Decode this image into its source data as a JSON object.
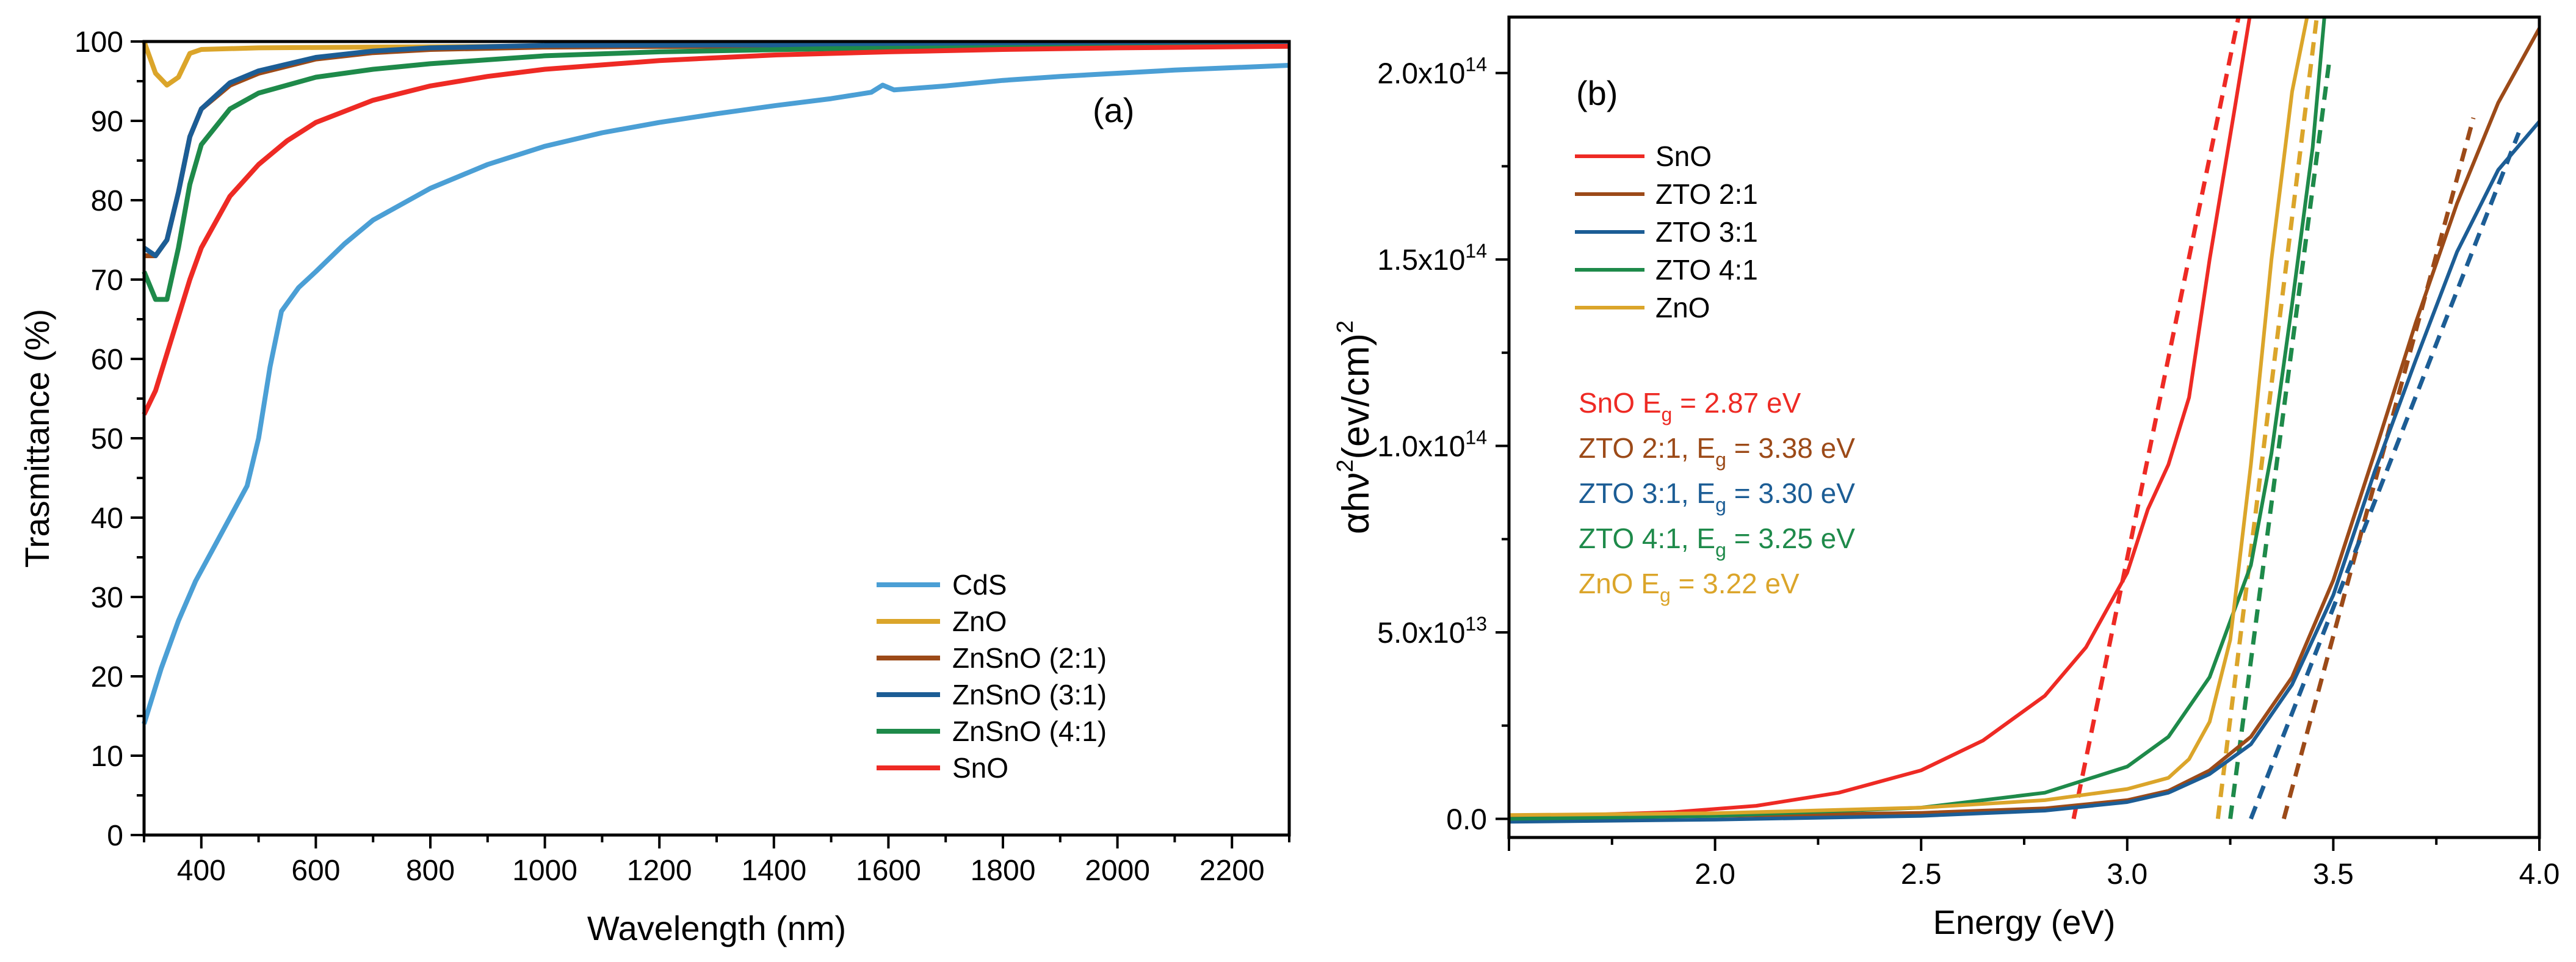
{
  "chart_data": [
    {
      "type": "line",
      "panel_label": "(a)",
      "xlabel": "Wavelength (nm)",
      "ylabel": "Trasmittance (%)",
      "xlim": [
        300,
        2300
      ],
      "ylim": [
        0,
        100
      ],
      "xticks": [
        "400",
        "600",
        "800",
        "1000",
        "1200",
        "1400",
        "1600",
        "1800",
        "2000",
        "2200"
      ],
      "yticks": [
        "0",
        "10",
        "20",
        "30",
        "40",
        "50",
        "60",
        "70",
        "80",
        "90",
        "100"
      ],
      "legend_position": "bottom-right",
      "series": [
        {
          "name": "CdS",
          "color": "#4b9fd5",
          "points": [
            [
              300,
              14
            ],
            [
              330,
              21
            ],
            [
              360,
              27
            ],
            [
              390,
              32
            ],
            [
              420,
              36
            ],
            [
              450,
              40
            ],
            [
              480,
              44
            ],
            [
              500,
              50
            ],
            [
              520,
              59
            ],
            [
              540,
              66
            ],
            [
              570,
              69
            ],
            [
              600,
              71
            ],
            [
              650,
              74.5
            ],
            [
              700,
              77.5
            ],
            [
              800,
              81.5
            ],
            [
              900,
              84.5
            ],
            [
              1000,
              86.8
            ],
            [
              1100,
              88.5
            ],
            [
              1200,
              89.8
            ],
            [
              1300,
              90.9
            ],
            [
              1400,
              91.9
            ],
            [
              1500,
              92.8
            ],
            [
              1570,
              93.6
            ],
            [
              1590,
              94.5
            ],
            [
              1610,
              93.9
            ],
            [
              1700,
              94.4
            ],
            [
              1800,
              95.1
            ],
            [
              1900,
              95.6
            ],
            [
              2000,
              96
            ],
            [
              2100,
              96.4
            ],
            [
              2200,
              96.7
            ],
            [
              2300,
              97
            ]
          ]
        },
        {
          "name": "ZnO",
          "color": "#dba52a",
          "points": [
            [
              300,
              100
            ],
            [
              320,
              96
            ],
            [
              340,
              94.5
            ],
            [
              360,
              95.5
            ],
            [
              380,
              98.5
            ],
            [
              400,
              99
            ],
            [
              500,
              99.2
            ],
            [
              700,
              99.3
            ],
            [
              1000,
              99.4
            ],
            [
              1500,
              99.5
            ],
            [
              2300,
              99.6
            ]
          ]
        },
        {
          "name": "ZnSnO (2:1)",
          "color": "#9c4a18",
          "points": [
            [
              300,
              73
            ],
            [
              320,
              73
            ],
            [
              340,
              75
            ],
            [
              360,
              81
            ],
            [
              380,
              88
            ],
            [
              400,
              91.5
            ],
            [
              450,
              94.5
            ],
            [
              500,
              96
            ],
            [
              600,
              97.8
            ],
            [
              700,
              98.6
            ],
            [
              800,
              99
            ],
            [
              1000,
              99.3
            ],
            [
              1500,
              99.5
            ],
            [
              2300,
              99.6
            ]
          ]
        },
        {
          "name": "ZnSnO (3:1)",
          "color": "#1c5d95",
          "points": [
            [
              300,
              74
            ],
            [
              320,
              73
            ],
            [
              340,
              75
            ],
            [
              360,
              81
            ],
            [
              380,
              88
            ],
            [
              400,
              91.5
            ],
            [
              450,
              94.8
            ],
            [
              500,
              96.3
            ],
            [
              600,
              98
            ],
            [
              700,
              98.8
            ],
            [
              800,
              99.2
            ],
            [
              1000,
              99.5
            ],
            [
              1500,
              99.6
            ],
            [
              2300,
              99.7
            ]
          ]
        },
        {
          "name": "ZnSnO (4:1)",
          "color": "#1e8a4a",
          "points": [
            [
              300,
              71
            ],
            [
              320,
              67.5
            ],
            [
              340,
              67.5
            ],
            [
              360,
              74
            ],
            [
              380,
              82
            ],
            [
              400,
              87
            ],
            [
              450,
              91.5
            ],
            [
              500,
              93.5
            ],
            [
              600,
              95.5
            ],
            [
              700,
              96.5
            ],
            [
              800,
              97.2
            ],
            [
              1000,
              98.2
            ],
            [
              1200,
              98.7
            ],
            [
              1500,
              99.1
            ],
            [
              2000,
              99.3
            ],
            [
              2300,
              99.4
            ]
          ]
        },
        {
          "name": "SnO",
          "color": "#ee2a24",
          "points": [
            [
              300,
              53
            ],
            [
              320,
              56
            ],
            [
              350,
              63
            ],
            [
              380,
              70
            ],
            [
              400,
              74
            ],
            [
              450,
              80.5
            ],
            [
              500,
              84.5
            ],
            [
              550,
              87.5
            ],
            [
              600,
              89.8
            ],
            [
              700,
              92.6
            ],
            [
              800,
              94.4
            ],
            [
              900,
              95.6
            ],
            [
              1000,
              96.5
            ],
            [
              1200,
              97.6
            ],
            [
              1400,
              98.3
            ],
            [
              1600,
              98.7
            ],
            [
              1800,
              99
            ],
            [
              2000,
              99.2
            ],
            [
              2300,
              99.4
            ]
          ]
        }
      ]
    },
    {
      "type": "line",
      "panel_label": "(b)",
      "xlabel": "Energy (eV)",
      "ylabel_main": "αhν",
      "ylabel_sup1": "2",
      "ylabel_mid": "(ev/cm)",
      "ylabel_sup2": "2",
      "xlim": [
        1.5,
        4.0
      ],
      "ylim": [
        -0.05,
        2.15
      ],
      "y_unit_note": "values in units of 10^14",
      "xticks": [
        "2.0",
        "2.5",
        "3.0",
        "3.5",
        "4.0"
      ],
      "yticks": [
        {
          "value": 0,
          "base": "0.0",
          "exp": ""
        },
        {
          "value": 0.5,
          "base": "5.0x10",
          "exp": "13"
        },
        {
          "value": 1.0,
          "base": "1.0x10",
          "exp": "14"
        },
        {
          "value": 1.5,
          "base": "1.5x10",
          "exp": "14"
        },
        {
          "value": 2.0,
          "base": "2.0x10",
          "exp": "14"
        }
      ],
      "legend_position": "top-left",
      "series": [
        {
          "name": "SnO",
          "color": "#ee2a24",
          "points": [
            [
              1.5,
              0.008
            ],
            [
              1.7,
              0.011
            ],
            [
              1.9,
              0.018
            ],
            [
              2.1,
              0.035
            ],
            [
              2.3,
              0.07
            ],
            [
              2.5,
              0.13
            ],
            [
              2.65,
              0.21
            ],
            [
              2.8,
              0.33
            ],
            [
              2.9,
              0.46
            ],
            [
              3.0,
              0.66
            ],
            [
              3.05,
              0.83
            ],
            [
              3.1,
              0.95
            ],
            [
              3.15,
              1.13
            ],
            [
              3.2,
              1.5
            ],
            [
              3.26,
              1.9
            ],
            [
              3.3,
              2.17
            ]
          ]
        },
        {
          "name": "ZTO 2:1",
          "color": "#9c4a18",
          "points": [
            [
              1.5,
              0.003
            ],
            [
              2.0,
              0.008
            ],
            [
              2.5,
              0.016
            ],
            [
              2.8,
              0.028
            ],
            [
              3.0,
              0.05
            ],
            [
              3.1,
              0.075
            ],
            [
              3.2,
              0.13
            ],
            [
              3.3,
              0.22
            ],
            [
              3.4,
              0.38
            ],
            [
              3.5,
              0.64
            ],
            [
              3.6,
              0.98
            ],
            [
              3.7,
              1.33
            ],
            [
              3.8,
              1.65
            ],
            [
              3.9,
              1.92
            ],
            [
              4.0,
              2.12
            ]
          ]
        },
        {
          "name": "ZTO 3:1",
          "color": "#1c5d95",
          "points": [
            [
              1.5,
              -0.008
            ],
            [
              2.0,
              -0.002
            ],
            [
              2.5,
              0.008
            ],
            [
              2.8,
              0.022
            ],
            [
              3.0,
              0.045
            ],
            [
              3.1,
              0.07
            ],
            [
              3.2,
              0.12
            ],
            [
              3.3,
              0.2
            ],
            [
              3.4,
              0.36
            ],
            [
              3.5,
              0.6
            ],
            [
              3.6,
              0.93
            ],
            [
              3.7,
              1.23
            ],
            [
              3.8,
              1.52
            ],
            [
              3.9,
              1.74
            ],
            [
              4.0,
              1.87
            ]
          ]
        },
        {
          "name": "ZTO 4:1",
          "color": "#1e8a4a",
          "points": [
            [
              1.5,
              0.0
            ],
            [
              2.0,
              0.008
            ],
            [
              2.5,
              0.03
            ],
            [
              2.8,
              0.07
            ],
            [
              3.0,
              0.14
            ],
            [
              3.1,
              0.22
            ],
            [
              3.2,
              0.38
            ],
            [
              3.3,
              0.68
            ],
            [
              3.35,
              0.98
            ],
            [
              3.4,
              1.38
            ],
            [
              3.45,
              1.8
            ],
            [
              3.48,
              2.17
            ]
          ]
        },
        {
          "name": "ZnO",
          "color": "#dba52a",
          "points": [
            [
              1.5,
              0.01
            ],
            [
              2.0,
              0.015
            ],
            [
              2.5,
              0.03
            ],
            [
              2.8,
              0.05
            ],
            [
              3.0,
              0.08
            ],
            [
              3.1,
              0.11
            ],
            [
              3.15,
              0.16
            ],
            [
              3.2,
              0.26
            ],
            [
              3.25,
              0.48
            ],
            [
              3.3,
              0.95
            ],
            [
              3.35,
              1.5
            ],
            [
              3.4,
              1.95
            ],
            [
              3.44,
              2.17
            ]
          ]
        }
      ],
      "fit_lines": [
        {
          "color": "#ee2a24",
          "from": [
            2.87,
            0.0
          ],
          "to": [
            3.27,
            2.15
          ]
        },
        {
          "color": "#9c4a18",
          "from": [
            3.38,
            0.0
          ],
          "to": [
            3.84,
            1.88
          ]
        },
        {
          "color": "#1c5d95",
          "from": [
            3.3,
            0.0
          ],
          "to": [
            3.95,
            1.84
          ]
        },
        {
          "color": "#1e8a4a",
          "from": [
            3.25,
            0.0
          ],
          "to": [
            3.49,
            2.03
          ]
        },
        {
          "color": "#dba52a",
          "from": [
            3.22,
            0.0
          ],
          "to": [
            3.46,
            2.15
          ]
        }
      ],
      "annotations": [
        {
          "color": "#ee2a24",
          "pre": "SnO E",
          "sub": "g",
          "post": " = 2.87 eV"
        },
        {
          "color": "#9c4a18",
          "pre": "ZTO 2:1, E",
          "sub": "g",
          "post": " = 3.38 eV"
        },
        {
          "color": "#1c5d95",
          "pre": "ZTO 3:1, E",
          "sub": "g",
          "post": " = 3.30 eV"
        },
        {
          "color": "#1e8a4a",
          "pre": "ZTO 4:1, E",
          "sub": "g",
          "post": " = 3.25 eV"
        },
        {
          "color": "#dba52a",
          "pre": "ZnO E",
          "sub": "g",
          "post": " = 3.22 eV"
        }
      ]
    }
  ]
}
